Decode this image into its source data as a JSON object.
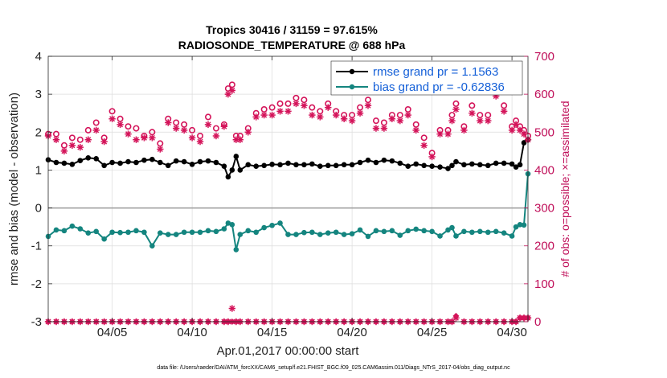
{
  "chart_data": {
    "type": "line",
    "title": "Tropics 30416 / 31159 = 97.615%",
    "subtitle": "RADIOSONDE_TEMPERATURE @ 688 hPa",
    "xlabel": "Apr.01,2017 00:00:00 start",
    "ylabel": "rmse and bias (model - observation)",
    "ylabel_right": "# of obs: o=possible; ×=assimilated",
    "footnote": "data file: /Users/raeder/DAI/ATM_forcXX/CAM6_setup/f.e21.FHIST_BGC.f09_025.CAM6assim.011/Diags_NTrS_2017-04/obs_diag_output.nc",
    "xlim": [
      1,
      31
    ],
    "ylim": [
      -3,
      4
    ],
    "ylim_right": [
      0,
      700
    ],
    "x_ticks": [
      5,
      10,
      15,
      20,
      25,
      30
    ],
    "x_tick_labels": [
      "04/05",
      "04/10",
      "04/15",
      "04/20",
      "04/25",
      "04/30"
    ],
    "y_ticks": [
      -3,
      -2,
      -1,
      0,
      1,
      2,
      3,
      4
    ],
    "y_tick_labels": [
      "-3",
      "-2",
      "-1",
      "0",
      "1",
      "2",
      "3",
      "4"
    ],
    "y_right_ticks": [
      0,
      100,
      200,
      300,
      400,
      500,
      600,
      700
    ],
    "y_right_tick_labels": [
      "0",
      "100",
      "200",
      "300",
      "400",
      "500",
      "600",
      "700"
    ],
    "legend_position": "top-right",
    "zero_line": 0,
    "x": [
      1.0,
      1.5,
      2.0,
      2.5,
      3.0,
      3.5,
      4.0,
      4.5,
      5.0,
      5.5,
      6.0,
      6.5,
      7.0,
      7.5,
      8.0,
      8.5,
      9.0,
      9.5,
      10.0,
      10.5,
      11.0,
      11.5,
      12.0,
      12.25,
      12.5,
      12.75,
      13.0,
      13.5,
      14.0,
      14.5,
      15.0,
      15.5,
      16.0,
      16.5,
      17.0,
      17.5,
      18.0,
      18.5,
      19.0,
      19.5,
      20.0,
      20.5,
      21.0,
      21.5,
      22.0,
      22.5,
      23.0,
      23.5,
      24.0,
      24.5,
      25.0,
      25.5,
      26.0,
      26.25,
      26.5,
      27.0,
      27.5,
      28.0,
      28.5,
      29.0,
      29.5,
      30.0,
      30.25,
      30.5,
      30.75,
      31.0
    ],
    "series": [
      {
        "name": "rmse grand pr = 1.1563",
        "color": "#000000",
        "values": [
          1.27,
          1.2,
          1.18,
          1.15,
          1.25,
          1.32,
          1.3,
          1.12,
          1.2,
          1.18,
          1.22,
          1.2,
          1.26,
          1.28,
          1.2,
          1.12,
          1.24,
          1.22,
          1.15,
          1.22,
          1.24,
          1.2,
          1.1,
          0.82,
          1.0,
          1.36,
          1.0,
          1.14,
          1.1,
          1.12,
          1.15,
          1.14,
          1.18,
          1.14,
          1.14,
          1.16,
          1.1,
          1.12,
          1.12,
          1.14,
          1.14,
          1.2,
          1.26,
          1.2,
          1.26,
          1.24,
          1.18,
          1.1,
          1.16,
          1.12,
          1.1,
          1.08,
          1.04,
          1.12,
          1.22,
          1.14,
          1.16,
          1.14,
          1.12,
          1.18,
          1.18,
          1.16,
          1.08,
          1.14,
          1.72,
          1.8
        ]
      },
      {
        "name": "bias grand pr = -0.62836",
        "color": "#14857f",
        "values": [
          -0.75,
          -0.58,
          -0.6,
          -0.48,
          -0.55,
          -0.66,
          -0.62,
          -0.82,
          -0.64,
          -0.65,
          -0.64,
          -0.6,
          -0.64,
          -1.0,
          -0.66,
          -0.7,
          -0.7,
          -0.64,
          -0.64,
          -0.64,
          -0.6,
          -0.62,
          -0.55,
          -0.4,
          -0.44,
          -1.1,
          -0.7,
          -0.6,
          -0.64,
          -0.52,
          -0.46,
          -0.4,
          -0.7,
          -0.7,
          -0.65,
          -0.64,
          -0.7,
          -0.66,
          -0.64,
          -0.7,
          -0.68,
          -0.58,
          -0.75,
          -0.6,
          -0.62,
          -0.6,
          -0.72,
          -0.6,
          -0.56,
          -0.6,
          -0.62,
          -0.74,
          -0.58,
          -0.52,
          -0.74,
          -0.62,
          -0.64,
          -0.62,
          -0.64,
          -0.62,
          -0.66,
          -0.74,
          -0.5,
          -0.44,
          -0.45,
          0.9
        ]
      }
    ],
    "obs_possible": [
      495,
      495,
      465,
      485,
      480,
      505,
      525,
      485,
      555,
      535,
      515,
      510,
      490,
      500,
      470,
      535,
      525,
      520,
      505,
      490,
      540,
      510,
      520,
      615,
      625,
      490,
      490,
      510,
      550,
      560,
      565,
      575,
      575,
      590,
      585,
      565,
      555,
      575,
      555,
      545,
      545,
      565,
      585,
      530,
      525,
      545,
      545,
      560,
      520,
      485,
      445,
      505,
      505,
      545,
      575,
      515,
      570,
      545,
      545,
      615,
      570,
      515,
      530,
      515,
      505,
      490
    ],
    "obs_assimilated": [
      490,
      480,
      450,
      465,
      460,
      480,
      505,
      475,
      535,
      520,
      495,
      480,
      485,
      485,
      455,
      525,
      510,
      505,
      485,
      475,
      520,
      490,
      515,
      600,
      610,
      480,
      480,
      500,
      540,
      545,
      545,
      555,
      555,
      575,
      570,
      545,
      540,
      565,
      545,
      535,
      530,
      550,
      570,
      510,
      510,
      535,
      530,
      545,
      505,
      465,
      435,
      495,
      495,
      530,
      560,
      505,
      550,
      530,
      530,
      595,
      555,
      505,
      520,
      505,
      495,
      480
    ],
    "obs_rejected_possible": [
      0,
      0,
      0,
      0,
      0,
      0,
      0,
      0,
      0,
      0,
      0,
      0,
      0,
      0,
      0,
      0,
      0,
      0,
      0,
      0,
      0,
      0,
      0,
      0,
      0,
      0,
      0,
      0,
      0,
      0,
      0,
      0,
      0,
      0,
      0,
      0,
      0,
      0,
      0,
      0,
      0,
      0,
      0,
      0,
      0,
      0,
      0,
      0,
      0,
      0,
      0,
      0,
      0,
      0,
      15,
      0,
      0,
      0,
      0,
      0,
      0,
      0,
      0,
      10,
      10,
      10
    ],
    "obs_rejected_assimilated": [
      0,
      0,
      0,
      0,
      0,
      0,
      0,
      0,
      0,
      0,
      0,
      0,
      0,
      0,
      0,
      0,
      0,
      0,
      0,
      0,
      0,
      0,
      0,
      0,
      35,
      0,
      0,
      0,
      0,
      0,
      0,
      0,
      0,
      0,
      0,
      0,
      0,
      0,
      0,
      0,
      0,
      0,
      0,
      0,
      0,
      0,
      0,
      0,
      0,
      0,
      0,
      0,
      0,
      0,
      10,
      0,
      0,
      0,
      0,
      0,
      0,
      0,
      0,
      10,
      10,
      10
    ]
  }
}
